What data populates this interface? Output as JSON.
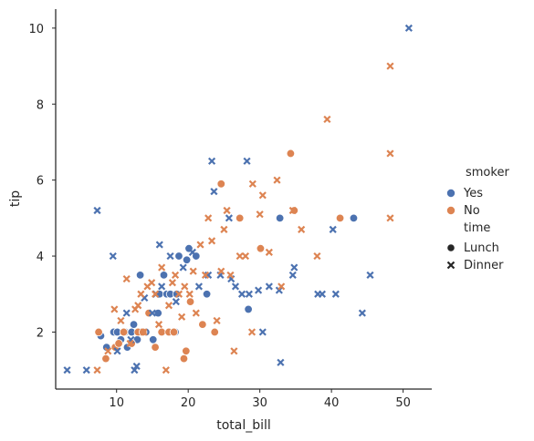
{
  "chart_data": {
    "type": "scatter",
    "title": "",
    "xlabel": "total_bill",
    "ylabel": "tip",
    "xlim": [
      1.5,
      54.0
    ],
    "ylim": [
      0.5,
      10.5
    ],
    "xticks": [
      10,
      20,
      30,
      40,
      50
    ],
    "yticks": [
      2,
      4,
      6,
      8,
      10
    ],
    "grid": false,
    "legend_position": "right",
    "hue": {
      "title": "smoker",
      "levels": [
        {
          "label": "Yes",
          "color": "#4c72b0"
        },
        {
          "label": "No",
          "color": "#dd8452"
        }
      ]
    },
    "style": {
      "title": "time",
      "levels": [
        {
          "label": "Lunch",
          "marker": "circle"
        },
        {
          "label": "Dinner",
          "marker": "x"
        }
      ]
    },
    "series": [
      {
        "smoker": "Yes",
        "time": "Lunch",
        "points": [
          [
            7.8,
            1.9
          ],
          [
            8.6,
            1.6
          ],
          [
            9.6,
            2.0
          ],
          [
            10.1,
            2.0
          ],
          [
            10.6,
            1.8
          ],
          [
            11.2,
            2.0
          ],
          [
            11.5,
            1.6
          ],
          [
            12.1,
            2.0
          ],
          [
            12.4,
            2.2
          ],
          [
            12.9,
            1.8
          ],
          [
            13.2,
            2.0
          ],
          [
            13.3,
            3.5
          ],
          [
            13.4,
            2.0
          ],
          [
            14.1,
            2.0
          ],
          [
            15.1,
            1.8
          ],
          [
            15.8,
            2.5
          ],
          [
            16.0,
            3.0
          ],
          [
            16.6,
            3.5
          ],
          [
            17.0,
            3.0
          ],
          [
            17.5,
            3.0
          ],
          [
            18.2,
            2.0
          ],
          [
            18.4,
            3.0
          ],
          [
            18.7,
            4.0
          ],
          [
            19.8,
            3.9
          ],
          [
            20.1,
            4.2
          ],
          [
            21.1,
            4.0
          ],
          [
            22.6,
            3.0
          ],
          [
            28.4,
            2.6
          ],
          [
            32.8,
            5.0
          ],
          [
            43.1,
            5.0
          ]
        ]
      },
      {
        "smoker": "No",
        "time": "Lunch",
        "points": [
          [
            7.5,
            2.0
          ],
          [
            8.5,
            1.3
          ],
          [
            9.8,
            1.6
          ],
          [
            10.3,
            1.7
          ],
          [
            11.0,
            2.0
          ],
          [
            12.1,
            1.7
          ],
          [
            13.0,
            2.0
          ],
          [
            13.7,
            2.0
          ],
          [
            14.5,
            2.5
          ],
          [
            15.4,
            1.6
          ],
          [
            16.3,
            2.0
          ],
          [
            17.3,
            2.0
          ],
          [
            18.0,
            2.0
          ],
          [
            19.4,
            1.3
          ],
          [
            19.7,
            1.5
          ],
          [
            20.3,
            2.8
          ],
          [
            22.0,
            2.2
          ],
          [
            23.7,
            2.0
          ],
          [
            24.6,
            5.9
          ],
          [
            27.2,
            5.0
          ],
          [
            30.1,
            4.2
          ],
          [
            34.3,
            6.7
          ],
          [
            34.8,
            5.2
          ],
          [
            41.2,
            5.0
          ]
        ]
      },
      {
        "smoker": "Yes",
        "time": "Dinner",
        "points": [
          [
            3.1,
            1.0
          ],
          [
            5.8,
            1.0
          ],
          [
            7.3,
            5.2
          ],
          [
            9.5,
            4.0
          ],
          [
            10.1,
            1.5
          ],
          [
            11.4,
            2.5
          ],
          [
            12.0,
            1.8
          ],
          [
            12.5,
            1.0
          ],
          [
            12.8,
            1.1
          ],
          [
            13.9,
            2.9
          ],
          [
            15.0,
            2.5
          ],
          [
            15.5,
            3.0
          ],
          [
            16.0,
            4.3
          ],
          [
            16.3,
            3.2
          ],
          [
            17.5,
            4.0
          ],
          [
            18.3,
            2.8
          ],
          [
            19.3,
            3.7
          ],
          [
            20.6,
            4.1
          ],
          [
            21.5,
            3.2
          ],
          [
            22.8,
            3.5
          ],
          [
            23.3,
            6.5
          ],
          [
            23.6,
            5.7
          ],
          [
            24.5,
            3.5
          ],
          [
            25.7,
            5.0
          ],
          [
            26.0,
            3.4
          ],
          [
            26.6,
            3.2
          ],
          [
            27.5,
            3.0
          ],
          [
            28.2,
            6.5
          ],
          [
            28.5,
            3.0
          ],
          [
            29.8,
            3.1
          ],
          [
            30.4,
            2.0
          ],
          [
            31.3,
            3.2
          ],
          [
            32.7,
            3.1
          ],
          [
            32.9,
            1.2
          ],
          [
            34.6,
            3.5
          ],
          [
            34.8,
            3.7
          ],
          [
            38.1,
            3.0
          ],
          [
            38.7,
            3.0
          ],
          [
            40.2,
            4.7
          ],
          [
            40.6,
            3.0
          ],
          [
            44.3,
            2.5
          ],
          [
            45.4,
            3.5
          ],
          [
            50.8,
            10.0
          ]
        ]
      },
      {
        "smoker": "No",
        "time": "Dinner",
        "points": [
          [
            7.3,
            1.0
          ],
          [
            8.8,
            1.5
          ],
          [
            9.7,
            2.6
          ],
          [
            10.6,
            2.3
          ],
          [
            11.4,
            3.4
          ],
          [
            11.9,
            1.7
          ],
          [
            12.6,
            2.6
          ],
          [
            13.0,
            2.7
          ],
          [
            13.4,
            3.0
          ],
          [
            13.8,
            2.0
          ],
          [
            14.3,
            3.2
          ],
          [
            14.9,
            3.3
          ],
          [
            15.4,
            3.0
          ],
          [
            15.9,
            2.2
          ],
          [
            16.3,
            3.7
          ],
          [
            16.9,
            1.0
          ],
          [
            17.3,
            2.7
          ],
          [
            17.8,
            3.3
          ],
          [
            18.2,
            3.5
          ],
          [
            18.7,
            3.0
          ],
          [
            19.1,
            2.4
          ],
          [
            19.5,
            3.2
          ],
          [
            20.2,
            3.0
          ],
          [
            20.7,
            3.6
          ],
          [
            21.1,
            2.5
          ],
          [
            21.7,
            4.3
          ],
          [
            22.4,
            3.5
          ],
          [
            22.8,
            5.0
          ],
          [
            23.3,
            4.4
          ],
          [
            24.0,
            2.3
          ],
          [
            24.6,
            3.6
          ],
          [
            25.0,
            4.7
          ],
          [
            25.4,
            5.2
          ],
          [
            25.9,
            3.5
          ],
          [
            26.4,
            1.5
          ],
          [
            27.2,
            4.0
          ],
          [
            28.0,
            4.0
          ],
          [
            28.9,
            2.0
          ],
          [
            29.0,
            5.9
          ],
          [
            30.0,
            5.1
          ],
          [
            30.4,
            5.6
          ],
          [
            31.3,
            4.1
          ],
          [
            32.4,
            6.0
          ],
          [
            33.0,
            3.2
          ],
          [
            34.6,
            5.2
          ],
          [
            35.8,
            4.7
          ],
          [
            39.4,
            7.6
          ],
          [
            38.0,
            4.0
          ],
          [
            48.2,
            9.0
          ],
          [
            48.2,
            6.7
          ],
          [
            48.2,
            5.0
          ]
        ]
      }
    ]
  }
}
